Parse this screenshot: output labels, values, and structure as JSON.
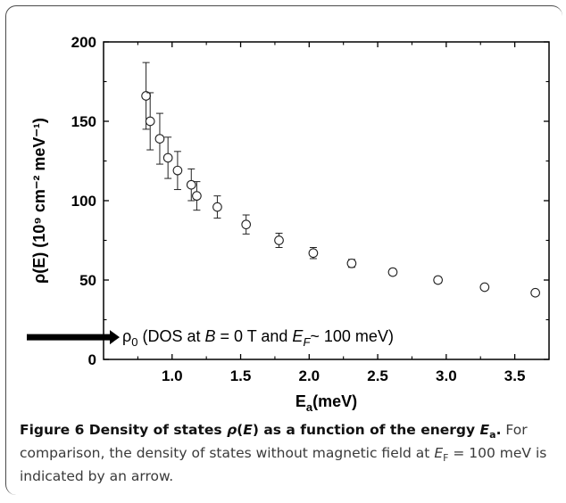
{
  "chart_data": {
    "type": "scatter",
    "xlabel": "E",
    "xlabel_sub": "a",
    "xlabel_unit": "(meV)",
    "ylabel": "ρ(E) (10⁹ cm⁻² meV⁻¹)",
    "xlim": [
      0.5,
      3.75
    ],
    "ylim": [
      0,
      200
    ],
    "xticks": [
      "1.0",
      "1.5",
      "2.0",
      "2.5",
      "3.0",
      "3.5"
    ],
    "yticks": [
      "0",
      "50",
      "100",
      "150",
      "200"
    ],
    "points": [
      {
        "x": 0.81,
        "y": 166,
        "err": 21
      },
      {
        "x": 0.84,
        "y": 150,
        "err": 18
      },
      {
        "x": 0.91,
        "y": 139,
        "err": 16
      },
      {
        "x": 0.97,
        "y": 127,
        "err": 13
      },
      {
        "x": 1.04,
        "y": 119,
        "err": 12
      },
      {
        "x": 1.14,
        "y": 110,
        "err": 10
      },
      {
        "x": 1.18,
        "y": 103,
        "err": 9
      },
      {
        "x": 1.33,
        "y": 96,
        "err": 7
      },
      {
        "x": 1.54,
        "y": 85,
        "err": 6
      },
      {
        "x": 1.78,
        "y": 75,
        "err": 4.5
      },
      {
        "x": 2.03,
        "y": 67,
        "err": 3.5
      },
      {
        "x": 2.31,
        "y": 60.5,
        "err": 2.5
      },
      {
        "x": 2.61,
        "y": 55,
        "err": 2
      },
      {
        "x": 2.94,
        "y": 50,
        "err": 2
      },
      {
        "x": 3.28,
        "y": 45.5,
        "err": 1.5
      },
      {
        "x": 3.65,
        "y": 42,
        "err": 1.5
      }
    ],
    "annotation": {
      "symbol": "ρ",
      "symbol_sub": "0",
      "text_a": " (DOS at ",
      "text_b": "B",
      "text_c": " = 0 T and ",
      "text_d": "E",
      "text_d_sub": "F",
      "text_e": "~ 100 meV)",
      "y_value": 14
    }
  },
  "caption": {
    "lead": "Figure 6 Density of states ",
    "lead_sym": "ρ",
    "lead_paren": "(",
    "lead_E": "E",
    "lead_mid": ") as a function of the energy ",
    "lead_Ea": "E",
    "lead_Ea_sub": "a",
    "lead_end": ".",
    "body1": "For comparison, the density of states without magnetic field at ",
    "body_E": "E",
    "body_E_sub": "F",
    "body2": " = 100 meV is indicated by an arrow."
  }
}
